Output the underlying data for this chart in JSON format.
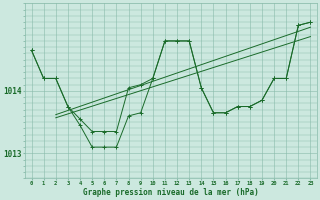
{
  "background_color": "#cce8df",
  "grid_color": "#88bbaa",
  "line_color": "#1a6b2a",
  "xlabel": "Graphe pression niveau de la mer (hPa)",
  "xlabel_fontsize": 5.5,
  "ylabel_ticks": [
    1013,
    1014
  ],
  "xlim": [
    -0.5,
    23.5
  ],
  "ylim": [
    1012.6,
    1015.4
  ],
  "hours": [
    0,
    1,
    2,
    3,
    4,
    5,
    6,
    7,
    8,
    9,
    10,
    11,
    12,
    13,
    14,
    15,
    16,
    17,
    18,
    19,
    20,
    21,
    22,
    23
  ],
  "series1": [
    1014.65,
    1014.2,
    1014.2,
    1013.75,
    1013.55,
    1013.35,
    1013.35,
    1013.35,
    1014.05,
    1014.1,
    1014.2,
    1014.8,
    1014.8,
    1014.8,
    1014.05,
    1013.65,
    1013.65,
    1013.75,
    1013.75,
    1013.85,
    1014.2,
    1014.2,
    1015.05,
    1015.1
  ],
  "series2": [
    1014.65,
    1014.2,
    1014.2,
    1013.75,
    1013.45,
    1013.1,
    1013.1,
    1013.1,
    1013.6,
    1013.65,
    1014.2,
    1014.8,
    1014.8,
    1014.8,
    1014.05,
    1013.65,
    1013.65,
    1013.75,
    1013.75,
    1013.85,
    1014.2,
    1014.2,
    1015.05,
    1015.1
  ],
  "trend1": [
    2,
    23,
    1013.62,
    1015.02
  ],
  "trend2": [
    2,
    23,
    1013.57,
    1014.87
  ],
  "fig_width": 3.2,
  "fig_height": 2.0,
  "dpi": 100
}
